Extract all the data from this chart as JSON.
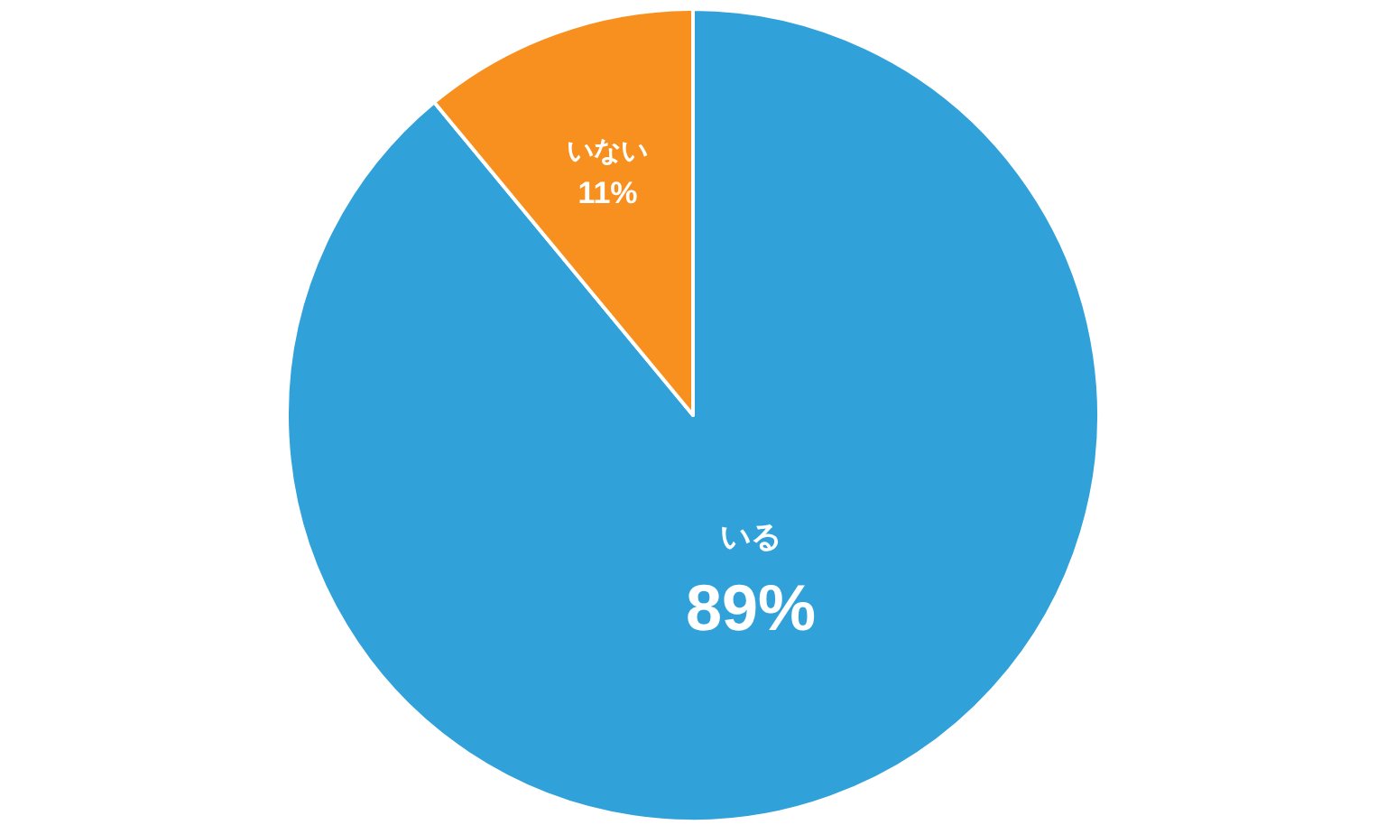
{
  "chart_data": {
    "type": "pie",
    "categories": [
      "いる",
      "いない"
    ],
    "values": [
      89,
      11
    ],
    "colors": [
      "#30a1d9",
      "#f7901e"
    ],
    "value_labels": [
      "89%",
      "11%"
    ]
  }
}
